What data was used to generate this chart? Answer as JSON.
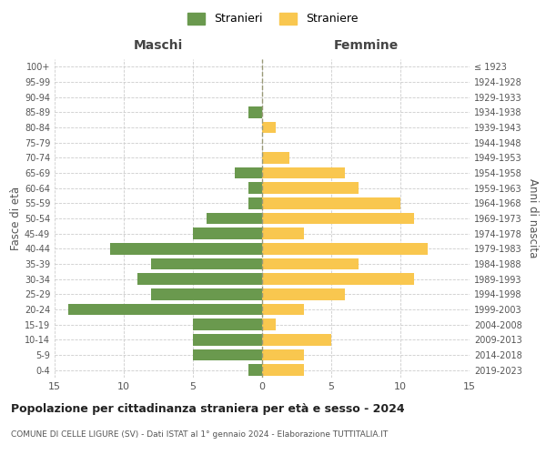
{
  "age_groups": [
    "0-4",
    "5-9",
    "10-14",
    "15-19",
    "20-24",
    "25-29",
    "30-34",
    "35-39",
    "40-44",
    "45-49",
    "50-54",
    "55-59",
    "60-64",
    "65-69",
    "70-74",
    "75-79",
    "80-84",
    "85-89",
    "90-94",
    "95-99",
    "100+"
  ],
  "birth_years": [
    "2019-2023",
    "2014-2018",
    "2009-2013",
    "2004-2008",
    "1999-2003",
    "1994-1998",
    "1989-1993",
    "1984-1988",
    "1979-1983",
    "1974-1978",
    "1969-1973",
    "1964-1968",
    "1959-1963",
    "1954-1958",
    "1949-1953",
    "1944-1948",
    "1939-1943",
    "1934-1938",
    "1929-1933",
    "1924-1928",
    "≤ 1923"
  ],
  "maschi": [
    1,
    5,
    5,
    5,
    14,
    8,
    9,
    8,
    11,
    5,
    4,
    1,
    1,
    2,
    0,
    0,
    0,
    1,
    0,
    0,
    0
  ],
  "femmine": [
    3,
    3,
    5,
    1,
    3,
    6,
    11,
    7,
    12,
    3,
    11,
    10,
    7,
    6,
    2,
    0,
    1,
    0,
    0,
    0,
    0
  ],
  "male_color": "#6a994e",
  "female_color": "#f9c74f",
  "bg_color": "#ffffff",
  "grid_color": "#cccccc",
  "title": "Popolazione per cittadinanza straniera per età e sesso - 2024",
  "subtitle": "COMUNE DI CELLE LIGURE (SV) - Dati ISTAT al 1° gennaio 2024 - Elaborazione TUTTITALIA.IT",
  "xlabel_left": "Maschi",
  "xlabel_right": "Femmine",
  "ylabel_left": "Fasce di età",
  "ylabel_right": "Anni di nascita",
  "legend_male": "Stranieri",
  "legend_female": "Straniere",
  "xlim": 15
}
